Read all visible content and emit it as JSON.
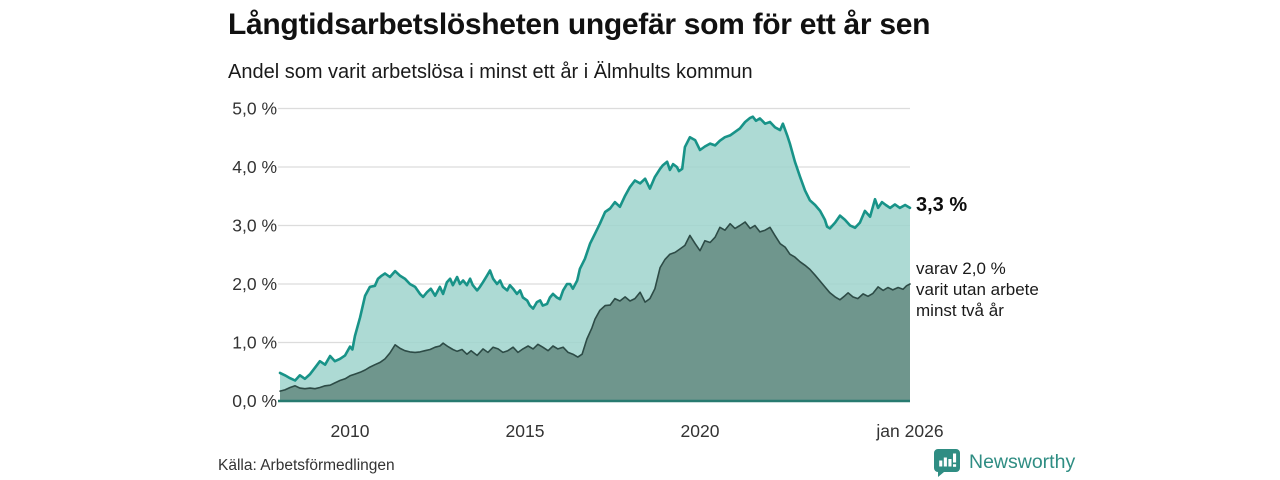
{
  "footer": {
    "source": "Källa: Arbetsförmedlingen",
    "brand": "Newsworthy"
  },
  "colors": {
    "series1_line": "#189388",
    "series1_fill": "#9fd3cc",
    "series2_line": "#2d4b46",
    "series2_fill": "#6f968d",
    "gridline": "#dcdcdc",
    "baseline": "#277a70",
    "brand_teal": "#2f8d83",
    "tick_text": "#333333"
  },
  "chart_data": {
    "type": "area",
    "title": "Långtidsarbetslösheten ungefär som för ett år sen",
    "subtitle": "Andel som varit arbetslösa i minst ett år i Älmhults kommun",
    "annotations": {
      "latest_total": "3,3 %",
      "two_year_note": "varav 2,0 %\nvarit utan arbete\nminst två år"
    },
    "x_axis": {
      "range": [
        2008,
        2026
      ],
      "ticks": [
        {
          "label": "2010",
          "year": 2010
        },
        {
          "label": "2015",
          "year": 2015
        },
        {
          "label": "2020",
          "year": 2020
        },
        {
          "label": "jan 2026",
          "year": 2026
        }
      ]
    },
    "y_axis": {
      "range": [
        0,
        5
      ],
      "grid": true,
      "ticks": [
        {
          "label": "0,0 %",
          "value": 0
        },
        {
          "label": "1,0 %",
          "value": 1
        },
        {
          "label": "2,0 %",
          "value": 2
        },
        {
          "label": "3,0 %",
          "value": 3
        },
        {
          "label": "4,0 %",
          "value": 4
        },
        {
          "label": "5,0 %",
          "value": 5
        }
      ]
    },
    "series": [
      {
        "name": "Andel arbetslösa minst ett år",
        "latest_value": 3.3,
        "points": [
          [
            2008.0,
            0.48
          ],
          [
            2008.14,
            0.44
          ],
          [
            2008.29,
            0.39
          ],
          [
            2008.43,
            0.35
          ],
          [
            2008.57,
            0.44
          ],
          [
            2008.71,
            0.38
          ],
          [
            2008.86,
            0.46
          ],
          [
            2009.0,
            0.57
          ],
          [
            2009.14,
            0.68
          ],
          [
            2009.29,
            0.62
          ],
          [
            2009.43,
            0.77
          ],
          [
            2009.57,
            0.68
          ],
          [
            2009.71,
            0.72
          ],
          [
            2009.86,
            0.78
          ],
          [
            2010.0,
            0.93
          ],
          [
            2010.07,
            0.88
          ],
          [
            2010.14,
            1.11
          ],
          [
            2010.29,
            1.43
          ],
          [
            2010.43,
            1.8
          ],
          [
            2010.57,
            1.95
          ],
          [
            2010.71,
            1.97
          ],
          [
            2010.8,
            2.09
          ],
          [
            2010.9,
            2.14
          ],
          [
            2011.0,
            2.18
          ],
          [
            2011.14,
            2.12
          ],
          [
            2011.29,
            2.22
          ],
          [
            2011.43,
            2.14
          ],
          [
            2011.57,
            2.09
          ],
          [
            2011.71,
            2.0
          ],
          [
            2011.86,
            1.95
          ],
          [
            2012.0,
            1.83
          ],
          [
            2012.09,
            1.78
          ],
          [
            2012.2,
            1.86
          ],
          [
            2012.31,
            1.92
          ],
          [
            2012.43,
            1.8
          ],
          [
            2012.57,
            1.95
          ],
          [
            2012.66,
            1.83
          ],
          [
            2012.77,
            2.03
          ],
          [
            2012.86,
            2.09
          ],
          [
            2012.94,
            1.98
          ],
          [
            2013.06,
            2.12
          ],
          [
            2013.14,
            2.0
          ],
          [
            2013.23,
            2.06
          ],
          [
            2013.34,
            1.98
          ],
          [
            2013.43,
            2.09
          ],
          [
            2013.51,
            1.98
          ],
          [
            2013.63,
            1.89
          ],
          [
            2013.71,
            1.95
          ],
          [
            2013.8,
            2.03
          ],
          [
            2013.91,
            2.14
          ],
          [
            2014.0,
            2.23
          ],
          [
            2014.09,
            2.09
          ],
          [
            2014.2,
            2.0
          ],
          [
            2014.29,
            2.06
          ],
          [
            2014.37,
            1.95
          ],
          [
            2014.49,
            1.89
          ],
          [
            2014.57,
            1.98
          ],
          [
            2014.66,
            1.92
          ],
          [
            2014.77,
            1.83
          ],
          [
            2014.86,
            1.89
          ],
          [
            2014.94,
            1.77
          ],
          [
            2015.06,
            1.72
          ],
          [
            2015.14,
            1.63
          ],
          [
            2015.23,
            1.58
          ],
          [
            2015.34,
            1.69
          ],
          [
            2015.43,
            1.72
          ],
          [
            2015.51,
            1.63
          ],
          [
            2015.63,
            1.66
          ],
          [
            2015.71,
            1.77
          ],
          [
            2015.8,
            1.83
          ],
          [
            2015.91,
            1.77
          ],
          [
            2016.0,
            1.74
          ],
          [
            2016.09,
            1.89
          ],
          [
            2016.2,
            2.0
          ],
          [
            2016.29,
            2.0
          ],
          [
            2016.37,
            1.92
          ],
          [
            2016.49,
            2.06
          ],
          [
            2016.57,
            2.26
          ],
          [
            2016.71,
            2.43
          ],
          [
            2016.86,
            2.69
          ],
          [
            2017.0,
            2.86
          ],
          [
            2017.14,
            3.03
          ],
          [
            2017.29,
            3.23
          ],
          [
            2017.43,
            3.29
          ],
          [
            2017.57,
            3.4
          ],
          [
            2017.71,
            3.32
          ],
          [
            2017.86,
            3.51
          ],
          [
            2018.0,
            3.66
          ],
          [
            2018.14,
            3.77
          ],
          [
            2018.29,
            3.72
          ],
          [
            2018.43,
            3.8
          ],
          [
            2018.57,
            3.63
          ],
          [
            2018.71,
            3.83
          ],
          [
            2018.86,
            3.97
          ],
          [
            2018.94,
            4.03
          ],
          [
            2019.06,
            4.09
          ],
          [
            2019.14,
            3.95
          ],
          [
            2019.23,
            4.05
          ],
          [
            2019.34,
            4.0
          ],
          [
            2019.4,
            3.93
          ],
          [
            2019.49,
            3.97
          ],
          [
            2019.57,
            4.34
          ],
          [
            2019.71,
            4.51
          ],
          [
            2019.86,
            4.46
          ],
          [
            2020.0,
            4.29
          ],
          [
            2020.14,
            4.35
          ],
          [
            2020.29,
            4.4
          ],
          [
            2020.43,
            4.37
          ],
          [
            2020.57,
            4.45
          ],
          [
            2020.71,
            4.51
          ],
          [
            2020.86,
            4.54
          ],
          [
            2021.0,
            4.6
          ],
          [
            2021.14,
            4.66
          ],
          [
            2021.29,
            4.77
          ],
          [
            2021.43,
            4.84
          ],
          [
            2021.51,
            4.86
          ],
          [
            2021.6,
            4.79
          ],
          [
            2021.71,
            4.83
          ],
          [
            2021.86,
            4.74
          ],
          [
            2022.0,
            4.77
          ],
          [
            2022.14,
            4.68
          ],
          [
            2022.29,
            4.63
          ],
          [
            2022.37,
            4.74
          ],
          [
            2022.49,
            4.54
          ],
          [
            2022.57,
            4.4
          ],
          [
            2022.71,
            4.09
          ],
          [
            2022.86,
            3.83
          ],
          [
            2023.0,
            3.6
          ],
          [
            2023.14,
            3.43
          ],
          [
            2023.29,
            3.35
          ],
          [
            2023.43,
            3.25
          ],
          [
            2023.57,
            3.1
          ],
          [
            2023.63,
            2.98
          ],
          [
            2023.71,
            2.95
          ],
          [
            2023.86,
            3.05
          ],
          [
            2024.0,
            3.17
          ],
          [
            2024.14,
            3.1
          ],
          [
            2024.29,
            3.0
          ],
          [
            2024.43,
            2.96
          ],
          [
            2024.57,
            3.05
          ],
          [
            2024.71,
            3.25
          ],
          [
            2024.86,
            3.15
          ],
          [
            2025.0,
            3.45
          ],
          [
            2025.09,
            3.3
          ],
          [
            2025.2,
            3.4
          ],
          [
            2025.31,
            3.35
          ],
          [
            2025.43,
            3.3
          ],
          [
            2025.57,
            3.36
          ],
          [
            2025.71,
            3.3
          ],
          [
            2025.86,
            3.35
          ],
          [
            2026.0,
            3.3
          ]
        ]
      },
      {
        "name": "varav utan arbete minst två år",
        "latest_value": 2.0,
        "points": [
          [
            2008.0,
            0.17
          ],
          [
            2008.14,
            0.19
          ],
          [
            2008.29,
            0.23
          ],
          [
            2008.43,
            0.26
          ],
          [
            2008.57,
            0.22
          ],
          [
            2008.71,
            0.21
          ],
          [
            2008.86,
            0.22
          ],
          [
            2009.0,
            0.21
          ],
          [
            2009.14,
            0.23
          ],
          [
            2009.29,
            0.26
          ],
          [
            2009.43,
            0.27
          ],
          [
            2009.57,
            0.31
          ],
          [
            2009.71,
            0.35
          ],
          [
            2009.86,
            0.38
          ],
          [
            2010.0,
            0.43
          ],
          [
            2010.14,
            0.46
          ],
          [
            2010.29,
            0.49
          ],
          [
            2010.43,
            0.53
          ],
          [
            2010.57,
            0.58
          ],
          [
            2010.71,
            0.62
          ],
          [
            2010.86,
            0.66
          ],
          [
            2011.0,
            0.72
          ],
          [
            2011.14,
            0.82
          ],
          [
            2011.29,
            0.96
          ],
          [
            2011.43,
            0.9
          ],
          [
            2011.57,
            0.86
          ],
          [
            2011.71,
            0.84
          ],
          [
            2011.86,
            0.83
          ],
          [
            2012.0,
            0.84
          ],
          [
            2012.14,
            0.86
          ],
          [
            2012.29,
            0.88
          ],
          [
            2012.43,
            0.92
          ],
          [
            2012.57,
            0.94
          ],
          [
            2012.66,
            0.99
          ],
          [
            2012.8,
            0.93
          ],
          [
            2012.94,
            0.88
          ],
          [
            2013.06,
            0.85
          ],
          [
            2013.2,
            0.88
          ],
          [
            2013.34,
            0.8
          ],
          [
            2013.46,
            0.86
          ],
          [
            2013.63,
            0.78
          ],
          [
            2013.8,
            0.89
          ],
          [
            2013.94,
            0.83
          ],
          [
            2014.09,
            0.92
          ],
          [
            2014.23,
            0.89
          ],
          [
            2014.37,
            0.83
          ],
          [
            2014.51,
            0.86
          ],
          [
            2014.66,
            0.92
          ],
          [
            2014.8,
            0.83
          ],
          [
            2014.94,
            0.89
          ],
          [
            2015.09,
            0.94
          ],
          [
            2015.23,
            0.89
          ],
          [
            2015.37,
            0.97
          ],
          [
            2015.51,
            0.92
          ],
          [
            2015.66,
            0.86
          ],
          [
            2015.8,
            0.94
          ],
          [
            2015.94,
            0.89
          ],
          [
            2016.09,
            0.92
          ],
          [
            2016.23,
            0.83
          ],
          [
            2016.37,
            0.8
          ],
          [
            2016.51,
            0.75
          ],
          [
            2016.63,
            0.8
          ],
          [
            2016.77,
            1.06
          ],
          [
            2016.91,
            1.25
          ],
          [
            2017.0,
            1.4
          ],
          [
            2017.14,
            1.55
          ],
          [
            2017.29,
            1.63
          ],
          [
            2017.43,
            1.64
          ],
          [
            2017.57,
            1.75
          ],
          [
            2017.71,
            1.71
          ],
          [
            2017.86,
            1.78
          ],
          [
            2018.0,
            1.71
          ],
          [
            2018.14,
            1.75
          ],
          [
            2018.29,
            1.86
          ],
          [
            2018.43,
            1.69
          ],
          [
            2018.57,
            1.75
          ],
          [
            2018.71,
            1.92
          ],
          [
            2018.86,
            2.28
          ],
          [
            2019.0,
            2.42
          ],
          [
            2019.14,
            2.51
          ],
          [
            2019.29,
            2.54
          ],
          [
            2019.43,
            2.6
          ],
          [
            2019.57,
            2.66
          ],
          [
            2019.71,
            2.83
          ],
          [
            2019.86,
            2.69
          ],
          [
            2020.0,
            2.57
          ],
          [
            2020.14,
            2.74
          ],
          [
            2020.29,
            2.71
          ],
          [
            2020.43,
            2.8
          ],
          [
            2020.57,
            2.97
          ],
          [
            2020.71,
            2.92
          ],
          [
            2020.86,
            3.03
          ],
          [
            2021.0,
            2.95
          ],
          [
            2021.14,
            3.0
          ],
          [
            2021.29,
            3.06
          ],
          [
            2021.43,
            2.95
          ],
          [
            2021.57,
            3.0
          ],
          [
            2021.71,
            2.89
          ],
          [
            2021.86,
            2.92
          ],
          [
            2022.0,
            2.97
          ],
          [
            2022.14,
            2.83
          ],
          [
            2022.29,
            2.69
          ],
          [
            2022.43,
            2.63
          ],
          [
            2022.57,
            2.51
          ],
          [
            2022.71,
            2.46
          ],
          [
            2022.86,
            2.38
          ],
          [
            2023.0,
            2.32
          ],
          [
            2023.14,
            2.25
          ],
          [
            2023.29,
            2.15
          ],
          [
            2023.43,
            2.05
          ],
          [
            2023.57,
            1.95
          ],
          [
            2023.71,
            1.85
          ],
          [
            2023.86,
            1.78
          ],
          [
            2024.0,
            1.73
          ],
          [
            2024.14,
            1.8
          ],
          [
            2024.23,
            1.85
          ],
          [
            2024.37,
            1.78
          ],
          [
            2024.51,
            1.75
          ],
          [
            2024.66,
            1.83
          ],
          [
            2024.8,
            1.79
          ],
          [
            2024.94,
            1.84
          ],
          [
            2025.09,
            1.95
          ],
          [
            2025.23,
            1.89
          ],
          [
            2025.37,
            1.94
          ],
          [
            2025.51,
            1.9
          ],
          [
            2025.66,
            1.94
          ],
          [
            2025.8,
            1.91
          ],
          [
            2025.9,
            1.97
          ],
          [
            2026.0,
            2.0
          ]
        ]
      }
    ]
  }
}
